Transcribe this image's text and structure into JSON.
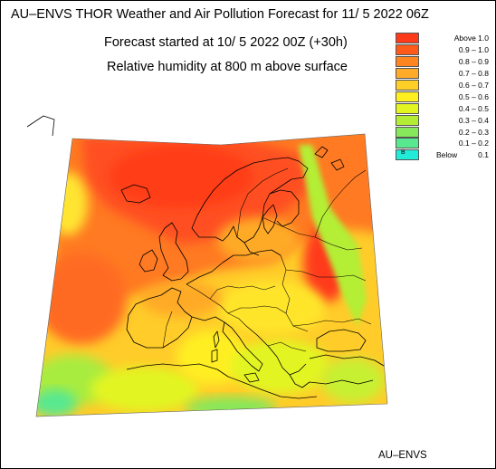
{
  "map": {
    "title": "AU–ENVS THOR Weather and Air Pollution Forecast for 11/ 5 2022  06Z",
    "subtitle_start": "Forecast started at 10/ 5 2022  00Z (+30h)",
    "subtitle_variable": "Relative humidity at 800 m above surface",
    "footer": "AU–ENVS",
    "legend": [
      {
        "label": "Above   1.0",
        "color": "#ff3a1a"
      },
      {
        "label": "0.9  –  1.0",
        "color": "#ff5a1a"
      },
      {
        "label": "0.8  –  0.9",
        "color": "#ff8520"
      },
      {
        "label": "0.7  –  0.8",
        "color": "#ffaa28"
      },
      {
        "label": "0.6  –  0.7",
        "color": "#ffcf28"
      },
      {
        "label": "0.5  –  0.6",
        "color": "#ffef20"
      },
      {
        "label": "0.4  –  0.5",
        "color": "#e2f520"
      },
      {
        "label": "0.3  –  0.4",
        "color": "#b4ee34"
      },
      {
        "label": "0.2  –  0.3",
        "color": "#86e85a"
      },
      {
        "label": "0.1  –  0.2",
        "color": "#58e890"
      },
      {
        "label": "Below",
        "value": "0.1",
        "color": "#20ecd8",
        "mark": "B"
      }
    ]
  }
}
